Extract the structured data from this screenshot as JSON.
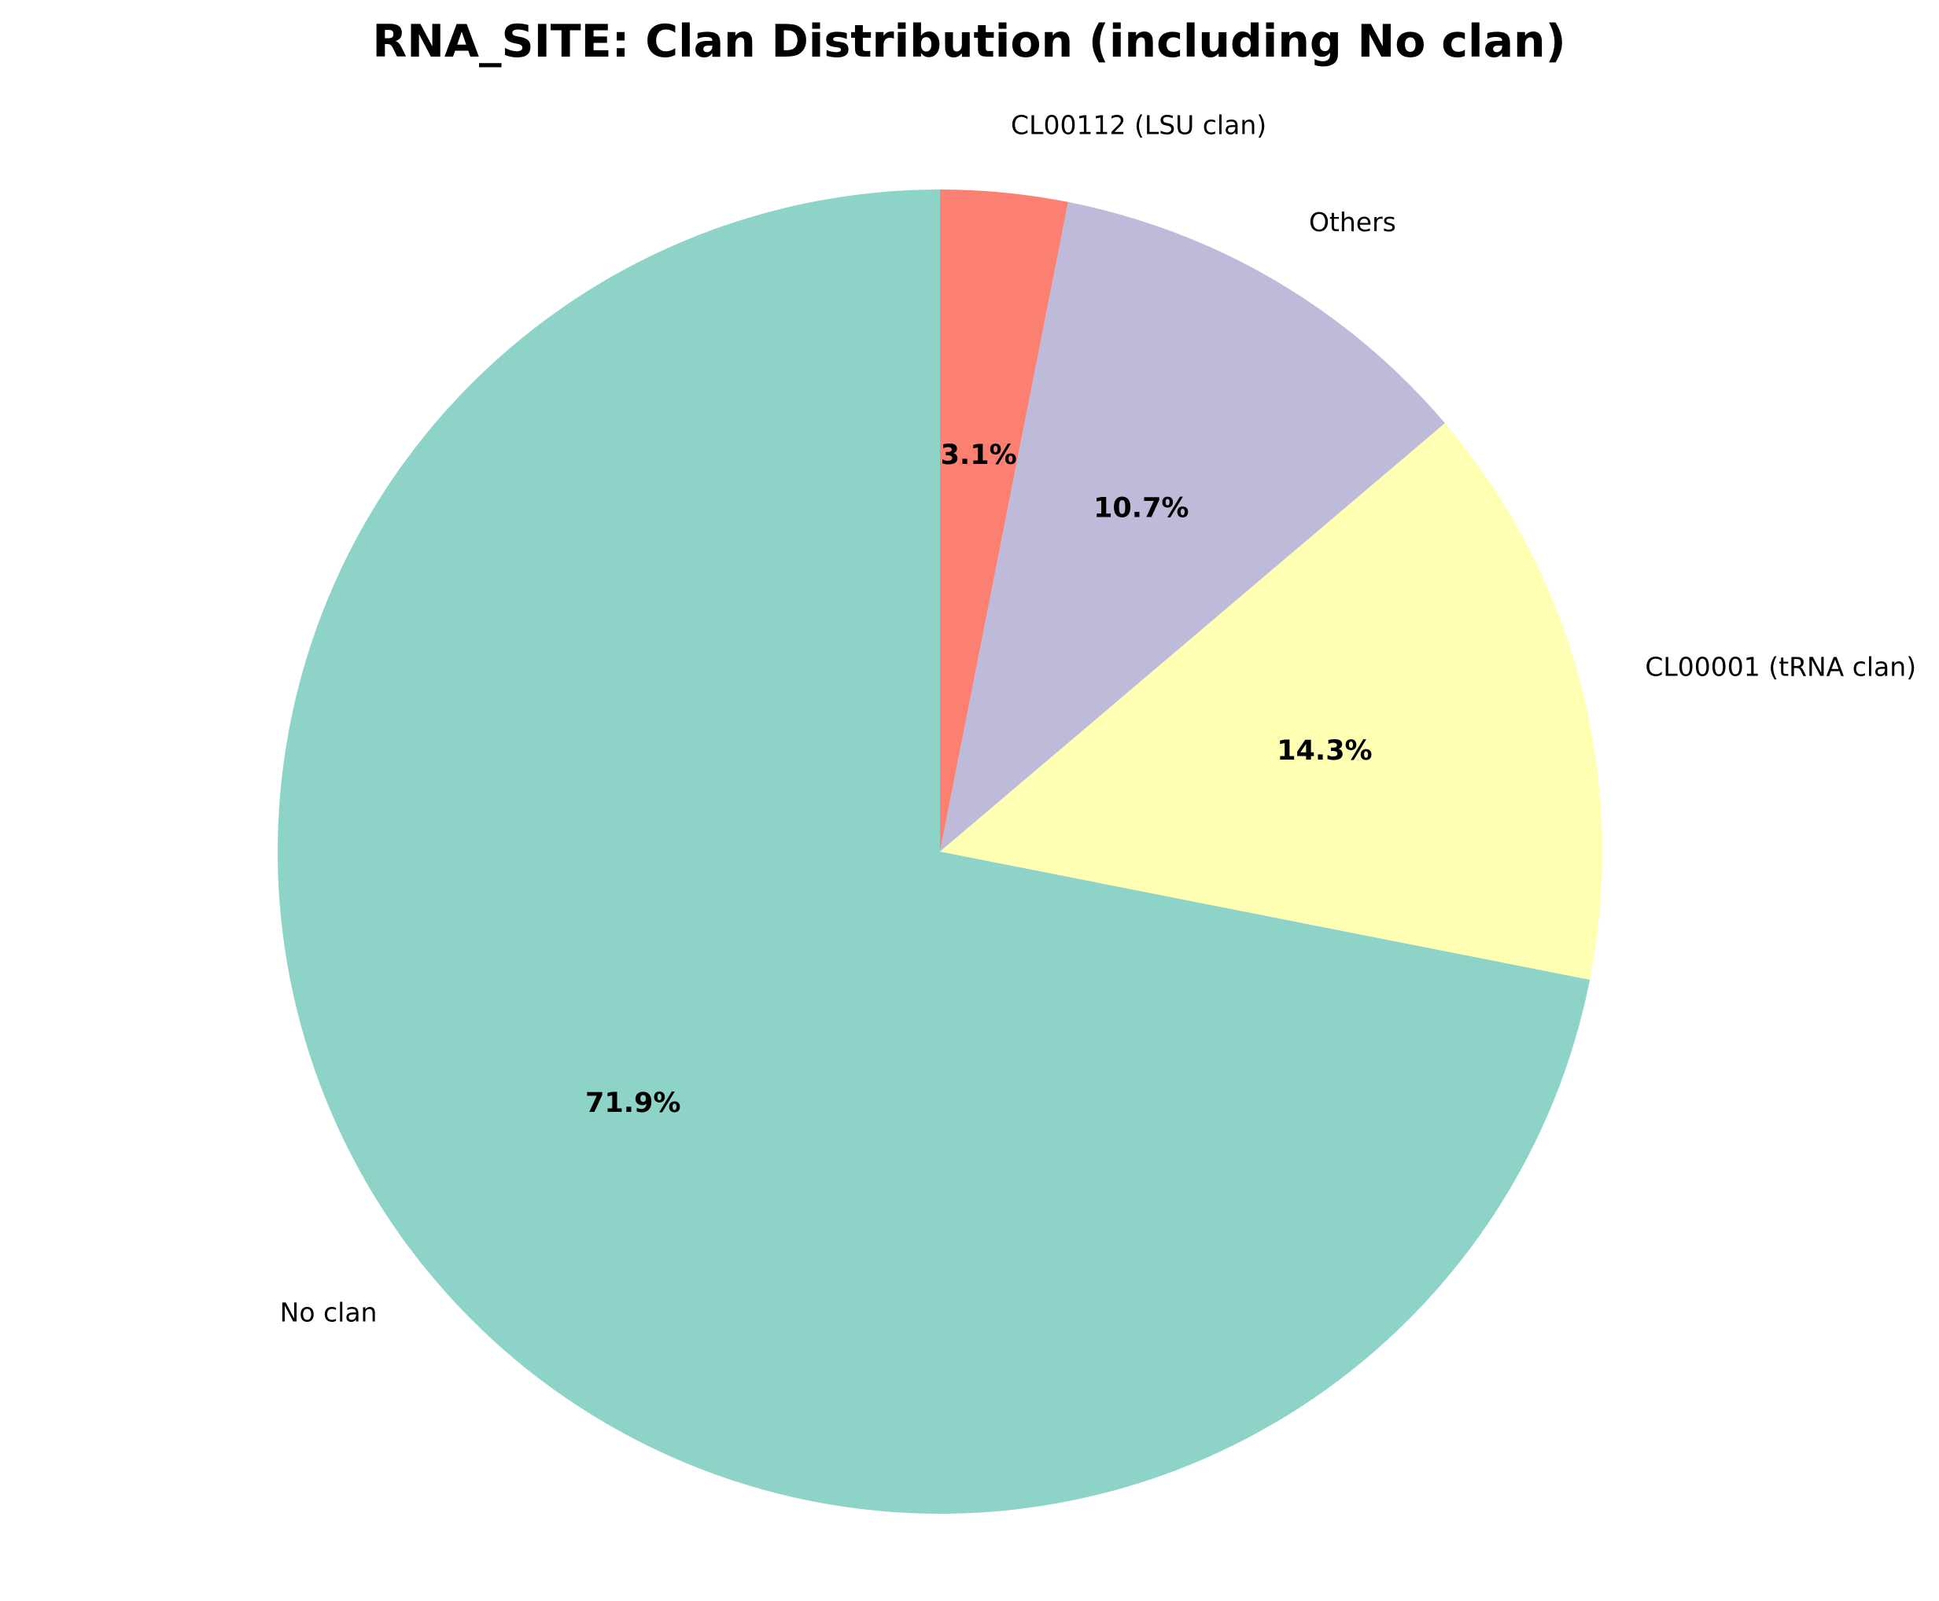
{
  "chart_data": {
    "type": "pie",
    "title": "RNA_SITE: Clan Distribution (including No clan)",
    "start_angle_deg": 90,
    "direction": "clockwise",
    "slices": [
      {
        "label": "CL00112 (LSU clan)",
        "value": 3.1,
        "pct_text": "3.1%",
        "color": "#fb8072"
      },
      {
        "label": "Others",
        "value": 10.7,
        "pct_text": "10.7%",
        "color": "#bebada"
      },
      {
        "label": "CL00001 (tRNA clan)",
        "value": 14.3,
        "pct_text": "14.3%",
        "color": "#ffffb3"
      },
      {
        "label": "No clan",
        "value": 71.9,
        "pct_text": "71.9%",
        "color": "#8dd3c7"
      }
    ]
  }
}
